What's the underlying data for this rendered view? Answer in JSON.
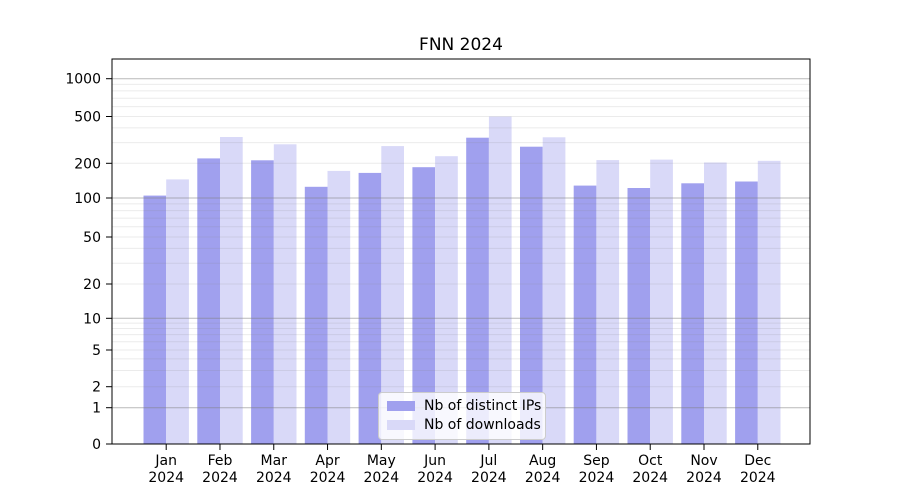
{
  "chart_data": {
    "type": "bar",
    "title": "FNN 2024",
    "categories": [
      "Jan",
      "Feb",
      "Mar",
      "Apr",
      "May",
      "Jun",
      "Jul",
      "Aug",
      "Sep",
      "Oct",
      "Nov",
      "Dec"
    ],
    "category_year": "2024",
    "series": [
      {
        "name": "Nb of distinct IPs",
        "color": "#a0a0ee",
        "values": [
          105,
          220,
          212,
          125,
          165,
          185,
          330,
          277,
          128,
          122,
          134,
          139
        ]
      },
      {
        "name": "Nb of downloads",
        "color": "#d9d9f8",
        "values": [
          145,
          335,
          290,
          172,
          280,
          230,
          500,
          333,
          213,
          215,
          203,
          210
        ]
      }
    ],
    "y_ticks": [
      0,
      1,
      2,
      5,
      10,
      20,
      50,
      100,
      200,
      500,
      1000
    ],
    "y_scale": "symlog",
    "ylim": [
      0,
      1470
    ],
    "grid": {
      "major": [
        1,
        10,
        100,
        1000
      ],
      "minor": [
        2,
        3,
        4,
        5,
        6,
        7,
        8,
        9,
        20,
        30,
        40,
        50,
        60,
        70,
        80,
        90,
        200,
        300,
        400,
        500,
        600,
        700,
        800,
        900
      ]
    },
    "legend_position": "lower center"
  }
}
